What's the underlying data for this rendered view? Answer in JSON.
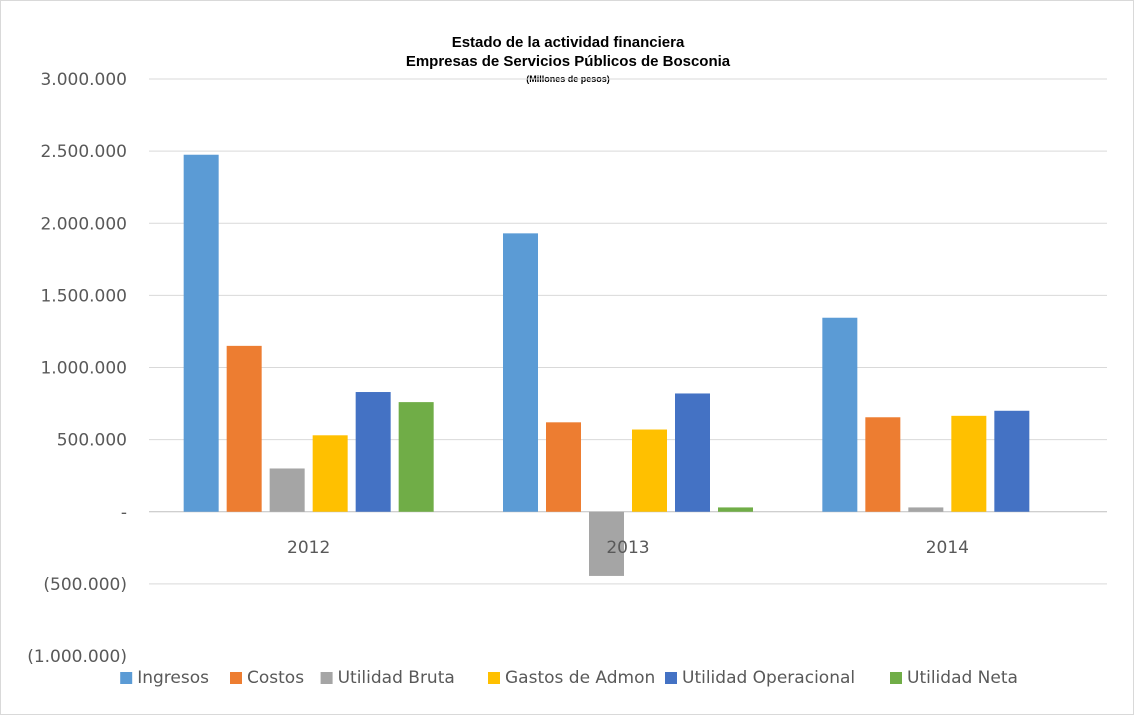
{
  "chart_data": {
    "type": "bar",
    "title": "Estado de la actividad financiera",
    "subtitle": "Empresas de Servicios Públicos de Bosconia",
    "unit_note": "(Millones  de pesos)",
    "categories": [
      "2012",
      "2013",
      "2014"
    ],
    "series": [
      {
        "name": "Ingresos",
        "color": "#5B9BD5",
        "values": [
          2475000,
          1930000,
          1345000
        ]
      },
      {
        "name": "Costos",
        "color": "#ED7D31",
        "values": [
          1150000,
          620000,
          655000
        ]
      },
      {
        "name": "Utilidad Bruta",
        "color": "#A5A5A5",
        "values": [
          300000,
          -445000,
          30000
        ]
      },
      {
        "name": "Gastos de Admon",
        "color": "#FFC000",
        "values": [
          530000,
          570000,
          665000
        ]
      },
      {
        "name": "Utilidad Operacional",
        "color": "#4472C4",
        "values": [
          830000,
          820000,
          700000
        ]
      },
      {
        "name": "Utilidad Neta",
        "color": "#70AD47",
        "values": [
          760000,
          30000,
          null
        ]
      }
    ],
    "y_ticks": [
      3000000,
      2500000,
      2000000,
      1500000,
      1000000,
      500000,
      0,
      -500000,
      -1000000
    ],
    "y_tick_labels": [
      "3.000.000",
      "2.500.000",
      "2.000.000",
      "1.500.000",
      "1.000.000",
      "500.000",
      "-",
      "(500.000)",
      "(1.000.000)"
    ],
    "ylim": [
      -1000000,
      3000000
    ],
    "grid": true,
    "legend_position": "bottom"
  }
}
